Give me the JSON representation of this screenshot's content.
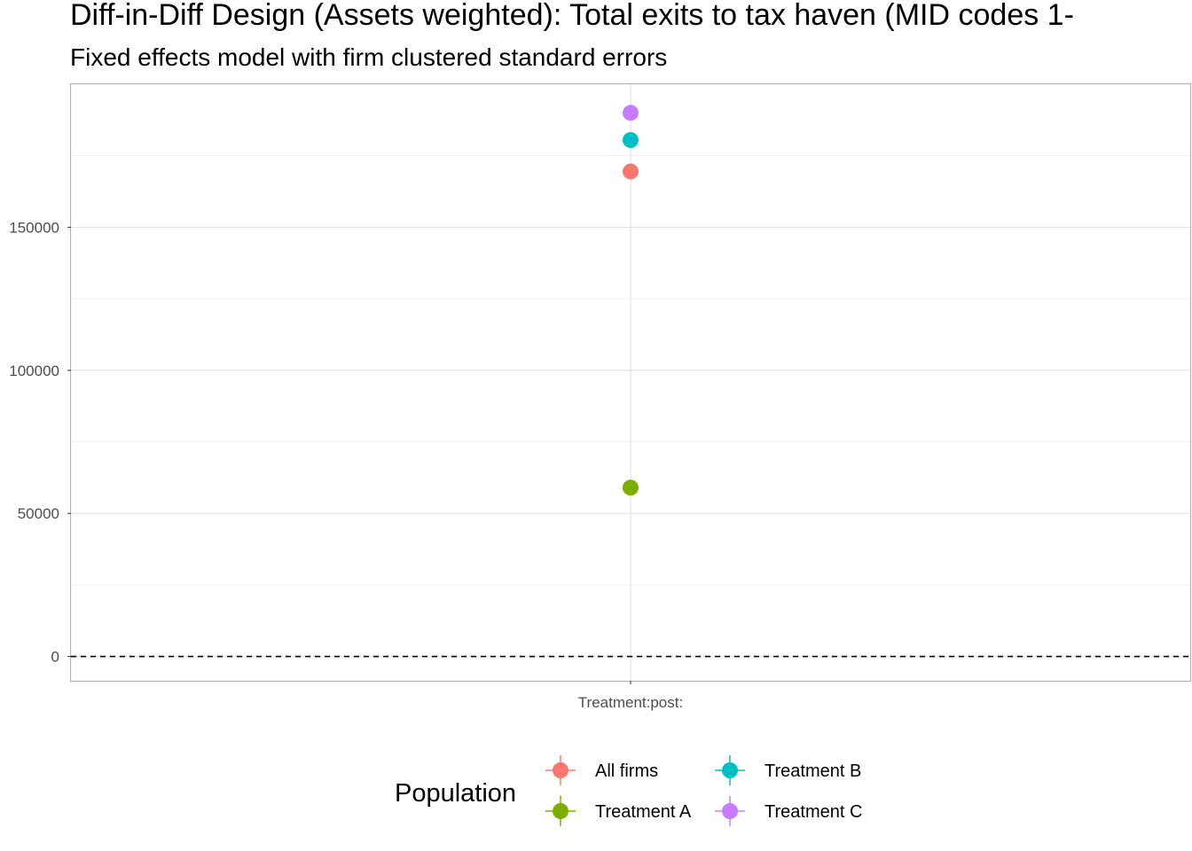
{
  "chart_data": {
    "type": "scatter",
    "title": "Diff-in-Diff Design (Assets weighted): Total exits to tax haven (MID codes 1-",
    "subtitle": "Fixed effects model with firm clustered standard errors",
    "xlabel": "",
    "ylabel": "",
    "categories": [
      "Treatment:post:"
    ],
    "ylim": [
      -8500,
      200000
    ],
    "y_ticks": [
      0,
      50000,
      100000,
      150000
    ],
    "y_tick_labels": [
      "0",
      "50000",
      "100000",
      "150000"
    ],
    "reference_line": {
      "y": 0,
      "style": "dashed"
    },
    "grid": true,
    "legend": {
      "title": "Population",
      "position": "bottom"
    },
    "series": [
      {
        "name": "All firms",
        "color": "#F8766D",
        "values": [
          169500
        ]
      },
      {
        "name": "Treatment A",
        "color": "#7CAE00",
        "values": [
          59000
        ]
      },
      {
        "name": "Treatment B",
        "color": "#00BFC4",
        "values": [
          180500
        ]
      },
      {
        "name": "Treatment C",
        "color": "#C77CFF",
        "values": [
          190000
        ]
      }
    ]
  }
}
